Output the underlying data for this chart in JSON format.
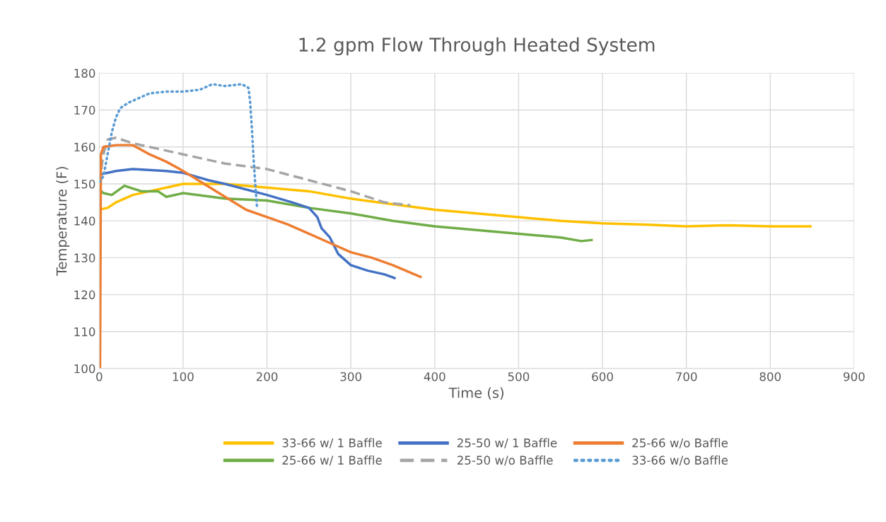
{
  "chart_data": {
    "type": "line",
    "title": "1.2 gpm Flow Through Heated System",
    "xlabel": "Time (s)",
    "ylabel": "Temperature (F)",
    "xlim": [
      0,
      900
    ],
    "xticks": [
      0,
      100,
      200,
      300,
      400,
      500,
      600,
      700,
      800,
      900
    ],
    "ylim": [
      100,
      180
    ],
    "yticks": [
      100,
      110,
      120,
      130,
      140,
      150,
      160,
      170,
      180
    ],
    "grid": true,
    "legend": "bottom",
    "series": [
      {
        "name": "33-66 w/ 1 Baffle",
        "color": "#ffc000",
        "line_style": "solid",
        "x": [
          0,
          10,
          20,
          40,
          60,
          80,
          100,
          150,
          200,
          250,
          300,
          350,
          400,
          450,
          500,
          550,
          600,
          650,
          700,
          750,
          800,
          848
        ],
        "values": [
          143,
          143.5,
          145,
          147,
          148,
          149,
          150,
          150,
          149,
          148,
          146,
          144.5,
          143,
          142,
          141,
          140,
          139.3,
          139,
          138.5,
          138.8,
          138.5,
          138.5
        ]
      },
      {
        "name": "25-66 w/ 1 Baffle",
        "color": "#70ad47",
        "line_style": "solid",
        "x": [
          0,
          5,
          15,
          30,
          50,
          70,
          80,
          100,
          150,
          200,
          250,
          300,
          350,
          400,
          450,
          500,
          550,
          575,
          587
        ],
        "values": [
          148.5,
          147.5,
          147,
          149.5,
          148,
          148,
          146.5,
          147.5,
          146,
          145.5,
          143.5,
          142,
          140,
          138.5,
          137.5,
          136.5,
          135.5,
          134.5,
          134.8
        ]
      },
      {
        "name": "25-50 w/ 1 Baffle",
        "color": "#4472c4",
        "line_style": "solid",
        "x": [
          0,
          20,
          40,
          80,
          100,
          130,
          150,
          200,
          230,
          250,
          260,
          265,
          275,
          285,
          300,
          320,
          340,
          352
        ],
        "values": [
          152.5,
          153.5,
          154,
          153.5,
          153,
          151,
          150,
          147,
          145,
          143.5,
          141,
          138,
          135.5,
          131,
          128,
          126.5,
          125.5,
          124.5
        ]
      },
      {
        "name": "25-50 w/o Baffle",
        "color": "#a5a5a5",
        "line_style": "dashed",
        "x": [
          0,
          5,
          10,
          20,
          40,
          60,
          100,
          150,
          200,
          250,
          300,
          340,
          371
        ],
        "values": [
          150,
          158,
          162,
          162.5,
          161,
          160,
          158,
          155.5,
          154,
          151,
          148,
          145,
          144.2
        ]
      },
      {
        "name": "25-66 w/o Baffle",
        "color": "#ed7d31",
        "line_style": "solid",
        "x": [
          1,
          2,
          5,
          20,
          40,
          60,
          80,
          100,
          125,
          150,
          175,
          200,
          225,
          250,
          275,
          300,
          325,
          350,
          383
        ],
        "values": [
          100,
          158,
          160,
          160.5,
          160.5,
          158,
          156,
          153.5,
          150,
          146.5,
          143,
          141,
          139,
          136.5,
          134,
          131.5,
          130,
          128,
          124.8
        ]
      },
      {
        "name": "33-66 w/o Baffle",
        "color": "#5b9bd5",
        "line_style": "dotted",
        "x": [
          0,
          5,
          10,
          15,
          20,
          25,
          35,
          50,
          60,
          80,
          100,
          120,
          135,
          150,
          170,
          178,
          180,
          182,
          184,
          186,
          188
        ],
        "values": [
          150.5,
          152,
          158,
          164,
          168,
          170.5,
          172,
          173.5,
          174.5,
          175,
          175,
          175.5,
          177,
          176.5,
          177,
          176,
          172,
          165,
          157,
          150,
          144
        ]
      }
    ]
  }
}
